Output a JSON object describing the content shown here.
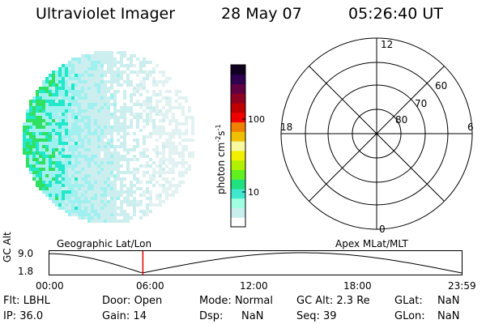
{
  "header": {
    "instrument": "Ultraviolet Imager",
    "date": "28 May 07",
    "time": "05:26:40 UT"
  },
  "colorbar": {
    "unit_label": "photon cm",
    "unit_sup1": "-2",
    "unit_mid": "s",
    "unit_sup2": "-1",
    "ticks": [
      {
        "label": "100",
        "value": 100
      },
      {
        "label": "10",
        "value": 10
      }
    ],
    "colors": [
      "#ffffff",
      "#c8eeee",
      "#a0ffe0",
      "#40e8d0",
      "#20e080",
      "#60f020",
      "#b0f000",
      "#f0f000",
      "#f8f8a0",
      "#f0c000",
      "#f08000",
      "#f00000",
      "#c00000",
      "#900020",
      "#600040",
      "#300050",
      "#100020"
    ]
  },
  "polar_plot": {
    "mlt_labels": {
      "top": "12",
      "bottom": "0",
      "left": "18",
      "right": "6"
    },
    "lat_labels": [
      "60",
      "70",
      "80"
    ]
  },
  "timeline": {
    "left_title": "Geographic Lat/Lon",
    "right_title": "Apex MLat/MLT",
    "ylabel": "GC Alt",
    "y_ticks": [
      "9.0",
      "1.8"
    ],
    "x_ticks": [
      "00:00",
      "06:00",
      "12:00",
      "18:00",
      "23:59"
    ],
    "current_time_hours": 5.44,
    "marker_color": "#e00000"
  },
  "info": {
    "flt_label": "Flt:",
    "flt_value": "LBHL",
    "door_label": "Door:",
    "door_value": "Open",
    "mode_label": "Mode:",
    "mode_value": "Normal",
    "gcalt_label": "GC Alt:",
    "gcalt_value": "2.3 Re",
    "glat_label": "GLat:",
    "glat_value": "NaN",
    "ip_label": "IP:",
    "ip_value": "36.0",
    "gain_label": "Gain:",
    "gain_value": "14",
    "dsp_label": "Dsp:",
    "dsp_value": "NaN",
    "seq_label": "Seq:",
    "seq_value": "39",
    "glon_label": "GLon:",
    "glon_value": "NaN"
  }
}
